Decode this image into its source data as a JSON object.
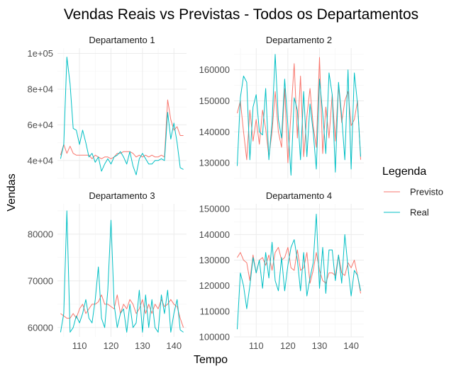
{
  "chart_data": {
    "type": "line",
    "title": "Vendas Reais vs Previstas - Todos os Departamentos",
    "xlabel": "Tempo",
    "ylabel": "Vendas",
    "legend": {
      "title": "Legenda",
      "placement": "right",
      "entries": [
        {
          "name": "Previsto",
          "color": "#F8766D"
        },
        {
          "name": "Real",
          "color": "#00BFC4"
        }
      ]
    },
    "x": [
      104,
      105,
      106,
      107,
      108,
      109,
      110,
      111,
      112,
      113,
      114,
      115,
      116,
      117,
      118,
      119,
      120,
      121,
      122,
      123,
      124,
      125,
      126,
      127,
      128,
      129,
      130,
      131,
      132,
      133,
      134,
      135,
      136,
      137,
      138,
      139,
      140,
      141,
      142,
      143
    ],
    "xlim": [
      103,
      144
    ],
    "xticks": [
      110,
      120,
      130,
      140
    ],
    "grid": true,
    "panels": [
      {
        "name": "Departamento 1",
        "ylim": [
          30000,
          103000
        ],
        "yticks": [
          40000,
          60000,
          80000,
          100000
        ],
        "yticklabels": [
          "4e+04",
          "6e+04",
          "8e+04",
          "1e+05"
        ],
        "series": [
          {
            "name": "Previsto",
            "values": [
              43000,
              49000,
              44000,
              48000,
              44000,
              43000,
              43000,
              43000,
              43000,
              43000,
              41000,
              43000,
              42000,
              41000,
              42000,
              42000,
              41000,
              42000,
              44000,
              44000,
              45000,
              45000,
              45000,
              44000,
              42000,
              43000,
              42000,
              43000,
              42000,
              43000,
              42000,
              42000,
              43000,
              42000,
              74000,
              63000,
              57000,
              59000,
              54000,
              54000
            ]
          },
          {
            "name": "Real",
            "values": [
              41000,
              49000,
              98000,
              83000,
              58000,
              57000,
              49000,
              57000,
              50000,
              42000,
              44000,
              39000,
              42000,
              34000,
              38000,
              41000,
              38000,
              42000,
              43000,
              45000,
              42000,
              38000,
              45000,
              37000,
              32000,
              41000,
              44000,
              41000,
              38000,
              38000,
              40000,
              40000,
              41000,
              40000,
              67000,
              52000,
              61000,
              50000,
              36000,
              35000
            ]
          }
        ]
      },
      {
        "name": "Departamento 2",
        "ylim": [
          125000,
          167000
        ],
        "yticks": [
          130000,
          140000,
          150000,
          160000
        ],
        "yticklabels": [
          "130000",
          "140000",
          "150000",
          "160000"
        ],
        "series": [
          {
            "name": "Previsto",
            "values": [
              146000,
              150000,
              140000,
              131000,
              147000,
              137000,
              144000,
              136000,
              147000,
              141000,
              132000,
              140000,
              153000,
              140000,
              135000,
              154000,
              130000,
              146000,
              162000,
              138000,
              158000,
              132000,
              145000,
              154000,
              142000,
              135000,
              164000,
              133000,
              148000,
              138000,
              152000,
              137000,
              155000,
              143000,
              150000,
              153000,
              142000,
              144000,
              150000,
              131000
            ]
          },
          {
            "name": "Real",
            "values": [
              129000,
              151000,
              158000,
              156000,
              131000,
              148000,
              152000,
              140000,
              139000,
              154000,
              131000,
              143000,
              165000,
              144000,
              138000,
              157000,
              142000,
              126000,
              151000,
              147000,
              131000,
              153000,
              132000,
              149000,
              140000,
              128000,
              157000,
              146000,
              133000,
              159000,
              152000,
              127000,
              156000,
              145000,
              131000,
              160000,
              128000,
              159000,
              149000,
              132000
            ]
          }
        ]
      },
      {
        "name": "Departamento 3",
        "ylim": [
          58000,
          86500
        ],
        "yticks": [
          60000,
          70000,
          80000
        ],
        "yticklabels": [
          "60000",
          "70000",
          "80000"
        ],
        "series": [
          {
            "name": "Previsto",
            "values": [
              63000,
              62500,
              62000,
              62000,
              63000,
              62000,
              64000,
              65000,
              63000,
              64000,
              65000,
              65000,
              65500,
              67000,
              65000,
              65000,
              64500,
              64000,
              67000,
              63000,
              65000,
              64000,
              66000,
              65000,
              63000,
              64000,
              66000,
              63000,
              65000,
              63000,
              65000,
              64000,
              66000,
              64500,
              65000,
              66000,
              65000,
              64500,
              62000,
              60000
            ]
          },
          {
            "name": "Real",
            "values": [
              59000,
              63000,
              85000,
              59000,
              60000,
              62500,
              61000,
              63000,
              66000,
              62000,
              61000,
              66000,
              73000,
              62000,
              60000,
              68000,
              83000,
              65000,
              60000,
              63000,
              64000,
              59000,
              65000,
              60000,
              61000,
              68000,
              59000,
              67000,
              60000,
              66000,
              60000,
              59000,
              67000,
              63000,
              68000,
              59000,
              63000,
              66000,
              59500,
              59000
            ]
          }
        ]
      },
      {
        "name": "Departamento 4",
        "ylim": [
          100000,
          152000
        ],
        "yticks": [
          100000,
          110000,
          120000,
          130000,
          140000,
          150000
        ],
        "yticklabels": [
          "100000",
          "110000",
          "120000",
          "130000",
          "140000",
          "150000"
        ],
        "series": [
          {
            "name": "Previsto",
            "values": [
              131000,
              133000,
              130000,
              129000,
              122000,
              132000,
              125000,
              130000,
              131000,
              128000,
              132000,
              126000,
              133000,
              135000,
              130000,
              131000,
              135000,
              127000,
              126000,
              134000,
              126000,
              127000,
              133000,
              121000,
              126000,
              133000,
              126000,
              122000,
              121000,
              125000,
              125000,
              124000,
              132000,
              125000,
              124000,
              129000,
              127000,
              130000,
              124000,
              117000
            ]
          },
          {
            "name": "Real",
            "values": [
              103000,
              125000,
              120000,
              111000,
              120000,
              131000,
              125000,
              130000,
              119000,
              133000,
              123000,
              137000,
              122000,
              118000,
              131000,
              118000,
              128000,
              135000,
              138000,
              130000,
              118000,
              133000,
              116000,
              123000,
              129000,
              148000,
              119000,
              135000,
              117000,
              134000,
              134000,
              122000,
              132000,
              121000,
              140000,
              127000,
              116000,
              126000,
              124000,
              118000
            ]
          }
        ]
      }
    ]
  }
}
